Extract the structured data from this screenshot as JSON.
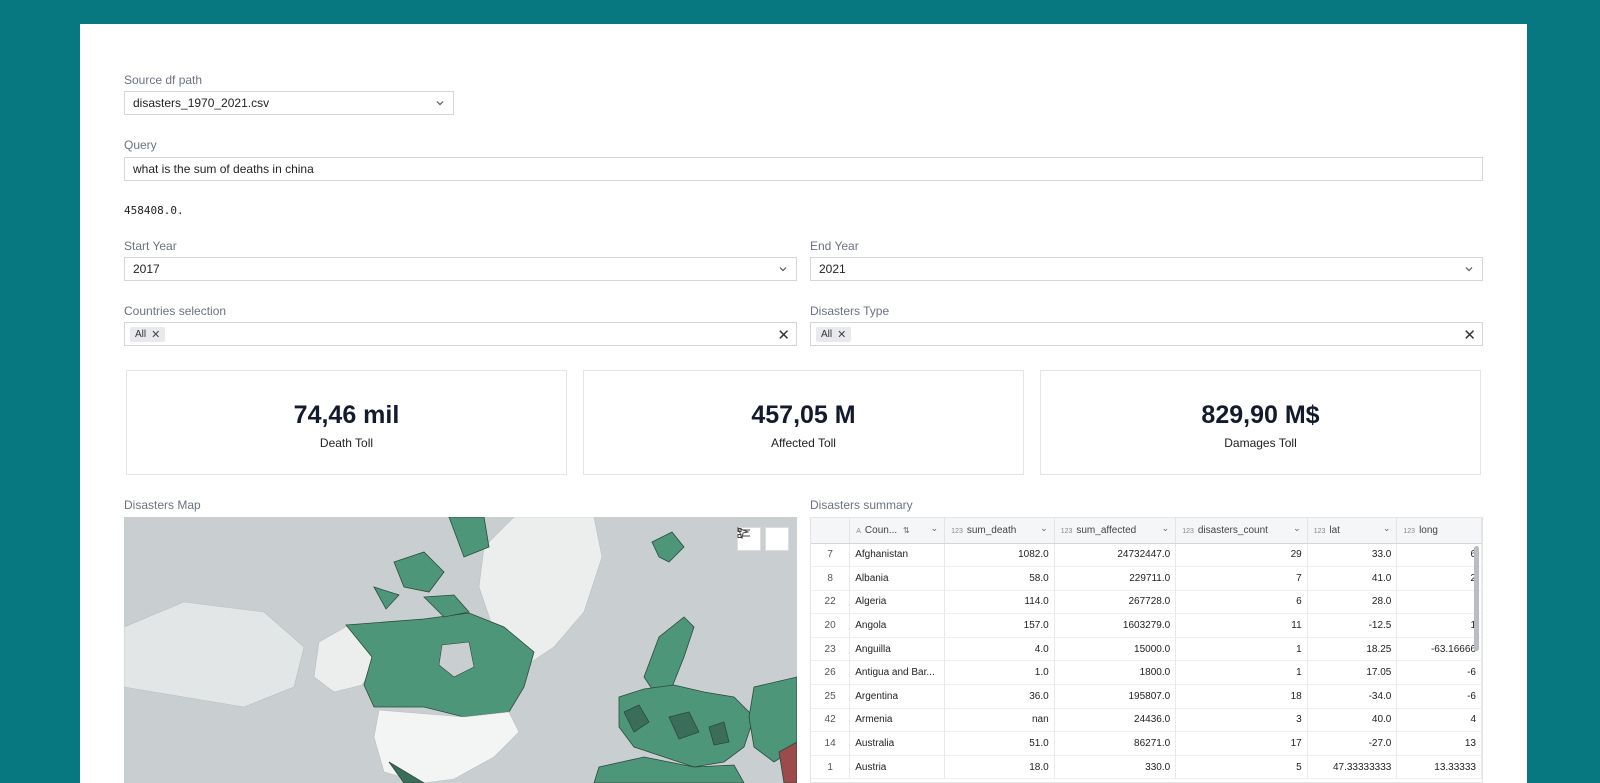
{
  "source": {
    "label": "Source df path",
    "value": "disasters_1970_2021.csv"
  },
  "query": {
    "label": "Query",
    "value": "what is the sum of deaths in china"
  },
  "result": "458408.0.",
  "start_year": {
    "label": "Start Year",
    "value": "2017"
  },
  "end_year": {
    "label": "End Year",
    "value": "2021"
  },
  "countries": {
    "label": "Countries selection",
    "chip": "All"
  },
  "disaster_type": {
    "label": "Disasters Type",
    "chip": "All"
  },
  "kpis": [
    {
      "value": "74,46 mil",
      "caption": "Death Toll"
    },
    {
      "value": "457,05 M",
      "caption": "Affected Toll"
    },
    {
      "value": "829,90 M$",
      "caption": "Damages Toll"
    }
  ],
  "map": {
    "label": "Disasters Map"
  },
  "summary": {
    "label": "Disasters summary",
    "columns": [
      {
        "type": "A",
        "name": "Coun..."
      },
      {
        "type": "123",
        "name": "sum_death"
      },
      {
        "type": "123",
        "name": "sum_affected"
      },
      {
        "type": "123",
        "name": "disasters_count"
      },
      {
        "type": "123",
        "name": "lat"
      },
      {
        "type": "123",
        "name": "long"
      }
    ],
    "rows": [
      [
        "7",
        "Afghanistan",
        "1082.0",
        "24732447.0",
        "29",
        "33.0",
        "6"
      ],
      [
        "8",
        "Albania",
        "58.0",
        "229711.0",
        "7",
        "41.0",
        "2"
      ],
      [
        "22",
        "Algeria",
        "114.0",
        "267728.0",
        "6",
        "28.0",
        ""
      ],
      [
        "20",
        "Angola",
        "157.0",
        "1603279.0",
        "11",
        "-12.5",
        "1"
      ],
      [
        "23",
        "Anguilla",
        "4.0",
        "15000.0",
        "1",
        "18.25",
        "-63.16666"
      ],
      [
        "26",
        "Antigua and Bar...",
        "1.0",
        "1800.0",
        "1",
        "17.05",
        "-6"
      ],
      [
        "25",
        "Argentina",
        "36.0",
        "195807.0",
        "18",
        "-34.0",
        "-6"
      ],
      [
        "42",
        "Armenia",
        "nan",
        "24436.0",
        "3",
        "40.0",
        "4"
      ],
      [
        "14",
        "Australia",
        "51.0",
        "86271.0",
        "17",
        "-27.0",
        "13"
      ],
      [
        "1",
        "Austria",
        "18.0",
        "330.0",
        "5",
        "47.33333333",
        "13.33333"
      ]
    ]
  },
  "colors": {
    "background": "#087880",
    "land": "#4e9679",
    "land_dark": "#3a6d5a",
    "ocean": "#c9cfd1",
    "unfilled": "#eceeee"
  },
  "icons": [
    "chevron-down-icon",
    "close-icon",
    "pointer-select-icon",
    "legend-icon",
    "sort-icon",
    "text-type-icon"
  ]
}
